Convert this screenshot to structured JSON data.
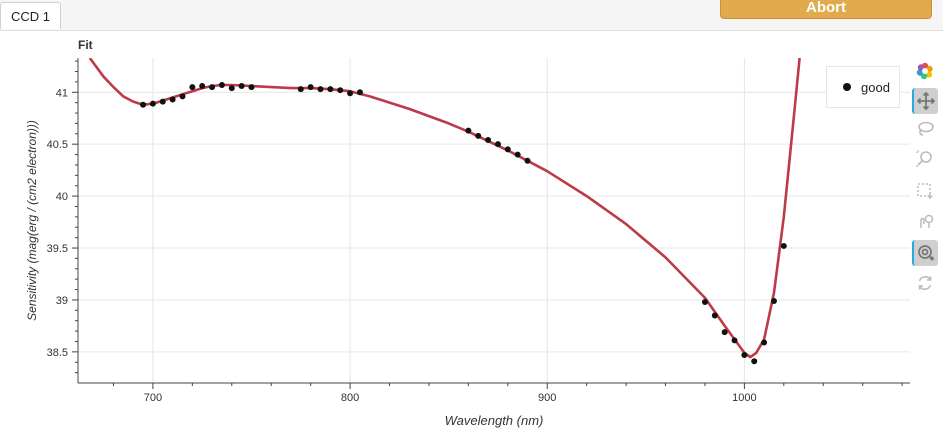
{
  "tabs": [
    {
      "label": "CCD 1"
    }
  ],
  "header": {
    "abort_label": "Abort"
  },
  "plot": {
    "title": "Fit"
  },
  "toolbar": {
    "tools": [
      {
        "name": "bokeh-logo-icon"
      },
      {
        "name": "pan-icon",
        "active": true
      },
      {
        "name": "lasso-select-icon"
      },
      {
        "name": "zoom-icon"
      },
      {
        "name": "box-select-icon"
      },
      {
        "name": "tap-select-icon"
      },
      {
        "name": "wheel-zoom-icon",
        "active": true
      },
      {
        "name": "reset-icon"
      }
    ]
  },
  "legend": {
    "items": [
      {
        "label": "good"
      }
    ]
  },
  "colors": {
    "fit_line": "#bd3a48",
    "points": "#111111",
    "accent": "#e0aa4d"
  },
  "chart_data": {
    "type": "scatter",
    "xlabel": "Wavelength (nm)",
    "ylabel": "Sensitivity (mag(erg / (cm2 electron)))",
    "xlim": [
      662,
      1084
    ],
    "ylim": [
      38.2,
      41.33
    ],
    "xticks": [
      700,
      800,
      900,
      1000
    ],
    "yticks": [
      38.5,
      39,
      39.5,
      40,
      40.5,
      41
    ],
    "grid": true,
    "legend_position": "top-right",
    "series": [
      {
        "name": "good",
        "kind": "points",
        "x": [
          695,
          700,
          705,
          710,
          715,
          720,
          725,
          730,
          735,
          740,
          745,
          750,
          775,
          780,
          785,
          790,
          795,
          800,
          805,
          860,
          865,
          870,
          875,
          880,
          885,
          890,
          980,
          985,
          990,
          995,
          1000,
          1005,
          1010,
          1015,
          1020
        ],
        "y": [
          40.88,
          40.89,
          40.91,
          40.93,
          40.96,
          41.05,
          41.06,
          41.05,
          41.07,
          41.04,
          41.06,
          41.05,
          41.03,
          41.05,
          41.03,
          41.03,
          41.02,
          40.99,
          41.0,
          40.63,
          40.58,
          40.54,
          40.5,
          40.45,
          40.4,
          40.34,
          38.98,
          38.85,
          38.69,
          38.61,
          38.47,
          38.41,
          38.59,
          38.99,
          39.52
        ]
      },
      {
        "name": "",
        "kind": "line",
        "x": [
          668,
          675,
          680,
          685,
          690,
          695,
          700,
          705,
          710,
          715,
          720,
          725,
          730,
          735,
          740,
          750,
          760,
          770,
          780,
          790,
          800,
          810,
          820,
          830,
          840,
          850,
          860,
          870,
          880,
          890,
          900,
          920,
          940,
          960,
          980,
          990,
          1000,
          1003,
          1006,
          1010,
          1015,
          1020,
          1025,
          1028
        ],
        "y": [
          41.33,
          41.15,
          41.05,
          40.96,
          40.91,
          40.88,
          40.89,
          40.92,
          40.95,
          40.98,
          41.01,
          41.04,
          41.06,
          41.07,
          41.07,
          41.06,
          41.05,
          41.04,
          41.04,
          41.03,
          41.01,
          40.96,
          40.9,
          40.84,
          40.77,
          40.7,
          40.62,
          40.53,
          40.44,
          40.34,
          40.24,
          40.0,
          39.73,
          39.41,
          39.02,
          38.75,
          38.49,
          38.45,
          38.49,
          38.62,
          39.07,
          39.8,
          40.75,
          41.33
        ]
      }
    ]
  }
}
